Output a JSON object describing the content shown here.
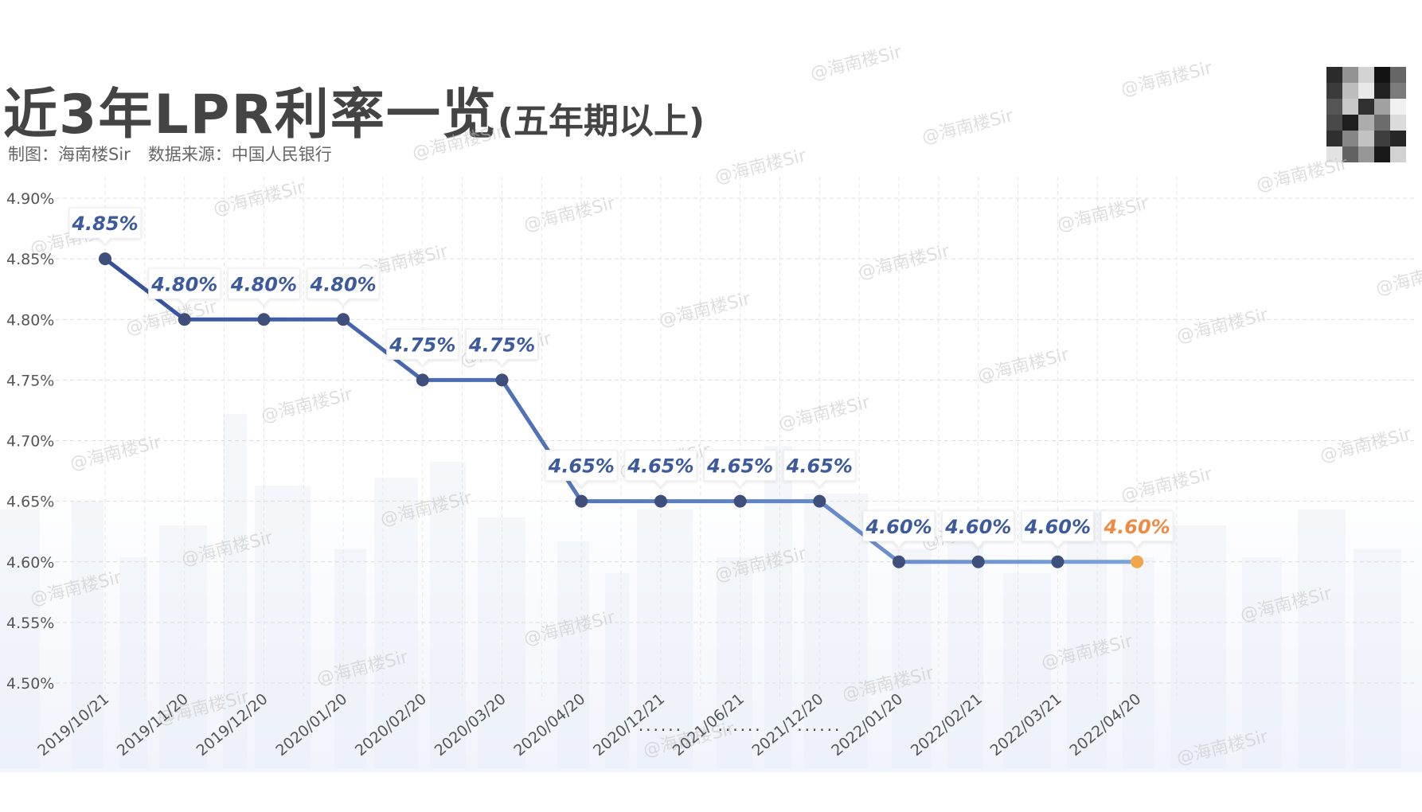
{
  "header": {
    "title": "近3年LPR利率一览",
    "subtitle": "(五年期以上)",
    "credit_author": "制图：海南楼Sir",
    "credit_source": "数据来源：中国人民银行"
  },
  "watermark": "@海南楼Sir",
  "qr_icon": "qr-code-icon",
  "colors": {
    "line_dark": "#3b5aa3",
    "line_light": "#5f8fd0",
    "point": "#3d4f7a",
    "highlight": "#f2a64a",
    "label_text": "#3d5a9c",
    "highlight_label": "#ef8a45",
    "grid": "#dddddd",
    "axis_text": "#555555"
  },
  "chart_data": {
    "type": "line",
    "title": "近3年LPR利率一览",
    "subtitle": "(五年期以上)",
    "categories": [
      "2019/10/21",
      "2019/11/20",
      "2019/12/20",
      "2020/01/20",
      "2020/02/20",
      "2020/03/20",
      "2020/04/20",
      "2020/12/21",
      "2021/06/21",
      "2021/12/20",
      "2022/01/20",
      "2022/02/21",
      "2022/03/21",
      "2022/04/20"
    ],
    "values": [
      4.85,
      4.8,
      4.8,
      4.8,
      4.75,
      4.75,
      4.65,
      4.65,
      4.65,
      4.65,
      4.6,
      4.6,
      4.6,
      4.6
    ],
    "data_labels": [
      "4.85%",
      "4.80%",
      "4.80%",
      "4.80%",
      "4.75%",
      "4.75%",
      "4.65%",
      "4.65%",
      "4.65%",
      "4.65%",
      "4.60%",
      "4.60%",
      "4.60%",
      "4.60%"
    ],
    "highlight_index": 13,
    "y_ticks": [
      "4.90%",
      "4.85%",
      "4.80%",
      "4.75%",
      "4.70%",
      "4.65%",
      "4.60%",
      "4.55%",
      "4.50%"
    ],
    "ylim": [
      4.5,
      4.9
    ],
    "gap_marker": "......",
    "gap_after_indices": [
      6,
      7,
      8
    ],
    "grid": true,
    "xlabel": "",
    "ylabel": ""
  }
}
